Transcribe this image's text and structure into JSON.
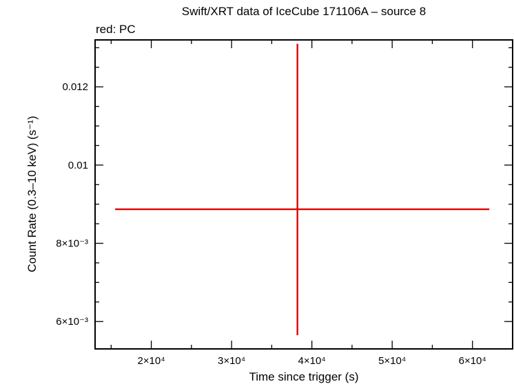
{
  "header": {
    "title": "Swift/XRT data of IceCube 171106A – source 8",
    "subtitle": "red: PC"
  },
  "chart_data": {
    "type": "scatter",
    "title": "Swift/XRT data of IceCube 171106A – source 8",
    "subtitle": "red: PC",
    "xlabel": "Time since trigger (s)",
    "ylabel": "Count Rate (0.3–10 keV) (s⁻¹)",
    "xlim": [
      13000,
      65000
    ],
    "ylim": [
      0.0053,
      0.0132
    ],
    "x_ticks": [
      {
        "value": 20000,
        "label": "2×10⁴"
      },
      {
        "value": 30000,
        "label": "3×10⁴"
      },
      {
        "value": 40000,
        "label": "4×10⁴"
      },
      {
        "value": 50000,
        "label": "5×10⁴"
      },
      {
        "value": 60000,
        "label": "6×10⁴"
      }
    ],
    "y_ticks": [
      {
        "value": 0.006,
        "label": "6×10⁻³"
      },
      {
        "value": 0.008,
        "label": "8×10⁻³"
      },
      {
        "value": 0.01,
        "label": "0.01"
      },
      {
        "value": 0.012,
        "label": "0.012"
      }
    ],
    "grid": false,
    "series": [
      {
        "name": "PC",
        "color": "#e00000",
        "points": [
          {
            "x": 38200,
            "x_low": 15500,
            "x_high": 62100,
            "y": 0.00887,
            "y_low": 0.00565,
            "y_high": 0.0131
          }
        ]
      }
    ]
  }
}
